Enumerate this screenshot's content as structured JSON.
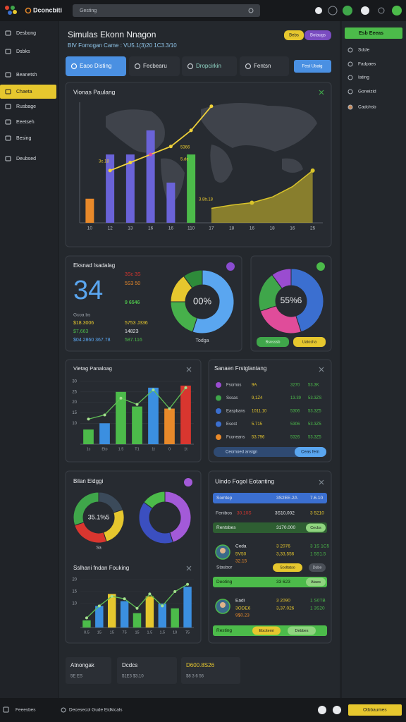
{
  "topbar": {
    "app": "Dconcbiti",
    "search": "Gesting"
  },
  "sidebar": {
    "items": [
      "Desbong",
      "Dsbks",
      "Beanetsh",
      "Chaeta",
      "Rusbage",
      "Eeetseh",
      "Besing",
      "Deubsed"
    ],
    "active": 3
  },
  "right_panel": {
    "button": "Esb Eeeas",
    "items": [
      "Sdcle",
      "Fadpaes",
      "Iating",
      "Goneizid",
      "Cadchsb"
    ]
  },
  "header": {
    "title": "Simulas Ekonn Nnagon",
    "subtitle": "BIV Fomogan Came : VU5.1(3)20 1C3.3/10",
    "buttons": [
      "Bebs",
      "Botaugs"
    ]
  },
  "tabs": {
    "items": [
      "Eaoo Disting",
      "Fecbearu",
      "Dropcirkin",
      "Fentsn"
    ],
    "active": 0,
    "action": "Fest Ubaig"
  },
  "main_chart": {
    "title": "Vionas Paulang",
    "categories": [
      "10",
      "12",
      "13",
      "16",
      "16",
      "110",
      "17",
      "18",
      "16",
      "18",
      "16",
      "25"
    ],
    "ylim": [
      0,
      15
    ],
    "bars": {
      "values": [
        3,
        8.5,
        8.5,
        11.5,
        5,
        8.5
      ],
      "colors": [
        "#e8892a",
        "#6a63d8",
        "#6a63d8",
        "#6a63d8",
        "#6a63d8",
        "#4cbb4a"
      ]
    },
    "line": {
      "values": [
        null,
        6.5,
        7.5,
        8.5,
        9.5,
        11.5,
        14.5,
        null,
        null,
        null,
        null,
        null
      ],
      "color": "#f0d23a"
    },
    "area": {
      "values": [
        null,
        null,
        null,
        null,
        null,
        null,
        1.8,
        2.2,
        2.5,
        3.2,
        4.5,
        6.5
      ],
      "color": "#d8c32a"
    },
    "annotations": [
      "3c.18",
      "5366",
      "5.dc",
      "3.8b.18"
    ]
  },
  "stat_card": {
    "title": "Eksnad Isadalag",
    "big": "34",
    "figures": [
      "3Sc 3S",
      "5S3 50",
      "9 6546"
    ],
    "legend_title": "Gcoa bs",
    "lines": [
      "$18.3006",
      "$7,663",
      "$04.2860 367.78"
    ],
    "lines2": [
      "5753 J336",
      "14823",
      "587.116"
    ],
    "donut": {
      "values": [
        55,
        20,
        15,
        10
      ],
      "colors": [
        "#5aa6f0",
        "#47b04b",
        "#e6c72e",
        "#2e8b3a"
      ],
      "center": "00%",
      "caption": "Todga"
    }
  },
  "donut_card": {
    "values": [
      45,
      25,
      20,
      10
    ],
    "colors": [
      "#3b6fd0",
      "#e04c9a",
      "#3fa64a",
      "#9a4cd0"
    ],
    "center": "55%6",
    "buttons": [
      "Bsnsssb",
      "Uatosha"
    ]
  },
  "bar_card": {
    "title": "Vietag Panaloag",
    "categories": [
      "1c",
      "Eto",
      "1.5",
      "T1",
      "1t",
      "0",
      "1t"
    ],
    "values": [
      7,
      10,
      25,
      18,
      27,
      17,
      28
    ],
    "colors": [
      "#4cbb4a",
      "#3b8fe0",
      "#4cbb4a",
      "#4cbb4a",
      "#3b8fe0",
      "#e8892a",
      "#d9362f"
    ],
    "line": [
      12,
      14,
      22,
      19,
      26,
      17,
      27
    ],
    "ylim": [
      0,
      32
    ],
    "yticks": [
      10,
      15,
      20,
      25,
      30
    ]
  },
  "list_card": {
    "title": "Sanaen Frstglantang",
    "rows": [
      [
        "Fsomos",
        "9A",
        "3270",
        "53.3K"
      ],
      [
        "Sssas",
        "9,1Z4",
        "13.39",
        "53.3ZS"
      ],
      [
        "Easpbans",
        "1011.10",
        "5306",
        "53.3Z5"
      ],
      [
        "Esost",
        "5.715",
        "5306",
        "53.3Z5"
      ],
      [
        "Fconeans",
        "53.796",
        "5326",
        "53.3Z5"
      ]
    ],
    "dot_colors": [
      "#9a4cd0",
      "#3fa64a",
      "#3b6fd0",
      "#3b6fd0",
      "#e8892a"
    ],
    "input": "Ceomoed ansign",
    "button": "Ceas fem"
  },
  "donut_pair": {
    "title": "Bilan Eldggi",
    "donut1": {
      "values": [
        20,
        25,
        25,
        30
      ],
      "colors": [
        "#3b4a5a",
        "#e6c72e",
        "#d9362f",
        "#3fa64a"
      ],
      "center": "35.1%5",
      "caption": "Sa"
    },
    "donut2": {
      "values": [
        45,
        40,
        15
      ],
      "colors": [
        "#a35ad8",
        "#3b4fc0",
        "#4cbb4a"
      ]
    }
  },
  "bar_card2": {
    "title": "Sslhani fndan Fouking",
    "categories": [
      "0.5",
      "15",
      "15",
      "75",
      "15",
      "1.5",
      "1.5",
      "10",
      "75"
    ],
    "values": [
      3,
      9,
      14,
      11,
      6,
      13,
      10,
      8,
      17
    ],
    "colors": [
      "#4cbb4a",
      "#3b8fe0",
      "#e6c72e",
      "#3b8fe0",
      "#4cbb4a",
      "#e6c72e",
      "#3b8fe0",
      "#4cbb4a",
      "#3b8fe0"
    ],
    "line": [
      4,
      9,
      13,
      12,
      8,
      14,
      9,
      15,
      18
    ],
    "ylim": [
      0,
      20
    ],
    "yticks": [
      10,
      15,
      20
    ]
  },
  "detail_card": {
    "title": "Uindo Fogol Eotanting",
    "rows": [
      {
        "type": "bar",
        "color": "#3b6fd0",
        "texts": [
          "Somtep",
          "3S2EE.2A",
          "7.6.10"
        ]
      },
      {
        "type": "plain",
        "texts": [
          "Fenibos",
          "30.10S",
          "3S10,002",
          "3 5210"
        ]
      },
      {
        "type": "bar",
        "color": "#2e5e32",
        "texts": [
          "Rentsbes",
          "3170.000"
        ],
        "buttons": [
          "Cecbs"
        ]
      },
      {
        "type": "person",
        "texts": [
          "Ceda",
          "5V50",
          "32.15",
          "3 2076",
          "3 1S 1C5",
          "3,33,556",
          "1 5S1.5"
        ],
        "buttons": [
          "Sodtatso",
          "Dsbe"
        ],
        "footer": "Stasbor"
      },
      {
        "type": "bar",
        "color": "#4cbb4a",
        "texts": [
          "Deoting",
          "33 623"
        ],
        "buttons": [
          "Ataes"
        ]
      },
      {
        "type": "person",
        "texts": [
          "Eadi",
          "3ODE6",
          "9$0.23",
          "3 2090",
          "1 S0TB",
          "3,37.026",
          "1 3S20"
        ]
      },
      {
        "type": "bar",
        "color": "#4cbb4a",
        "texts": [
          "Resting"
        ],
        "buttons": [
          "Ebcitemi",
          "Debbes"
        ]
      }
    ]
  },
  "bottom_cards": [
    {
      "title": "Atnongak",
      "sub": "5E ES"
    },
    {
      "title": "Dcdcs",
      "sub": "$1E3 $3.10"
    },
    {
      "title": "D600.8S26",
      "sub": "$8 3 6 56"
    }
  ],
  "footer": {
    "left": "Feeesbes",
    "center": "Decesecol Gude Eidkicals",
    "button": "Otbbaumes"
  }
}
